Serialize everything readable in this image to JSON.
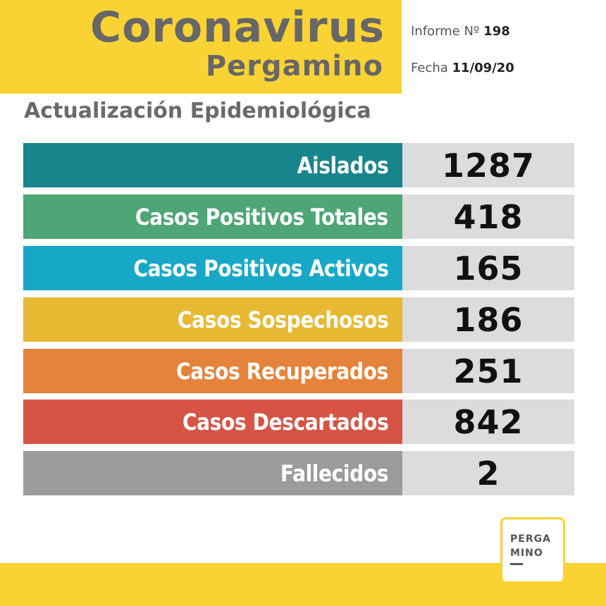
{
  "header": {
    "title": "Coronavirus",
    "subtitle": "Pergamino",
    "informe_label": "Informe Nº",
    "informe_number": "198",
    "fecha_label": "Fecha",
    "fecha_value": "11/09/20"
  },
  "section_title": "Actualización Epidemiológica",
  "stats": [
    {
      "label": "Aislados",
      "value": "1287",
      "color": "#17858b"
    },
    {
      "label": "Casos Positivos Totales",
      "value": "418",
      "color": "#4ea575"
    },
    {
      "label": "Casos Positivos Activos",
      "value": "165",
      "color": "#18a8c7"
    },
    {
      "label": "Casos Sospechosos",
      "value": "186",
      "color": "#e7b933"
    },
    {
      "label": "Casos Recuperados",
      "value": "251",
      "color": "#e5833b"
    },
    {
      "label": "Casos Descartados",
      "value": "842",
      "color": "#d65445"
    },
    {
      "label": "Fallecidos",
      "value": "2",
      "color": "#9b9b9b"
    }
  ],
  "logo": {
    "line1": "PERGA",
    "line2": "MINO"
  },
  "colors": {
    "brand_yellow": "#f9d234",
    "value_bg": "#dcdcdc"
  }
}
